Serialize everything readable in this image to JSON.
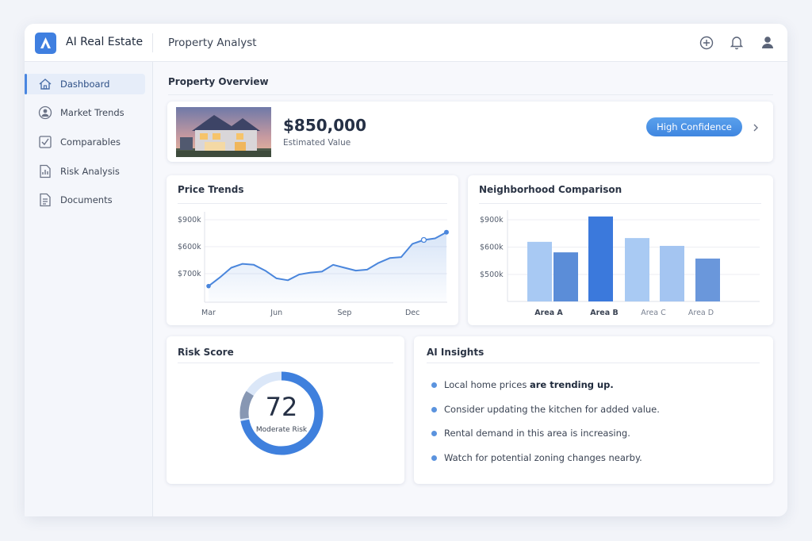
{
  "header": {
    "brand": "AI Real Estate",
    "page_title": "Property Analyst"
  },
  "sidebar": {
    "items": [
      "Dashboard",
      "Market Trends",
      "Comparables",
      "Risk Analysis",
      "Documents"
    ]
  },
  "overview": {
    "heading": "Property Overview",
    "value": "$850,000",
    "value_caption": "Estimated Value",
    "badge": "High Confidence"
  },
  "price_trends": {
    "chart_data": {
      "type": "line",
      "title": "Price Trends",
      "y_labels": [
        "$900k",
        "$600k",
        "$700k"
      ],
      "categories": [
        "Mar",
        null,
        null,
        null,
        null,
        null,
        "Jun",
        null,
        null,
        null,
        null,
        null,
        "Sep",
        null,
        null,
        null,
        null,
        null,
        "Dec",
        null,
        null,
        null
      ],
      "series": [
        {
          "color": "#4a86dc",
          "values": [
            700000,
            727000,
            757000,
            769000,
            766000,
            748000,
            724000,
            718000,
            736000,
            742000,
            745000,
            766000,
            757000,
            748000,
            751000,
            772000,
            787000,
            790000,
            831000,
            843000,
            848000,
            867000
          ]
        }
      ],
      "ylim": [
        650000,
        950000
      ]
    }
  },
  "neighborhood": {
    "chart_data": {
      "type": "bar",
      "title": "Neighborhood Comparison",
      "y_labels": [
        "$900k",
        "$600k",
        "$500k"
      ],
      "categories": [
        "Area A",
        null,
        "Area B",
        null,
        "Area C",
        "Area D"
      ],
      "values": [
        621000,
        582000,
        715000,
        635000,
        606000,
        559000
      ],
      "colors": [
        "#a8c9f3",
        "#5b8dd8",
        "#3b79dc",
        "#a9caf3",
        "#a4c5f1",
        "#6a97db"
      ],
      "ylim": [
        400000,
        750000
      ]
    }
  },
  "risk": {
    "chart_data": {
      "type": "gauge",
      "title": "Risk Score",
      "value": 72,
      "label": "Moderate Risk",
      "ylim": [
        0,
        100
      ],
      "color": "#3f80dd"
    }
  },
  "insights": {
    "title": "AI Insights",
    "items": [
      {
        "text": "Local home prices",
        "bold": "are trending up."
      },
      {
        "text": "Consider updating the kitchen for added value."
      },
      {
        "text": "Rental demand in this area is increasing."
      },
      {
        "text": "Watch for potential zoning changes nearby."
      }
    ]
  }
}
